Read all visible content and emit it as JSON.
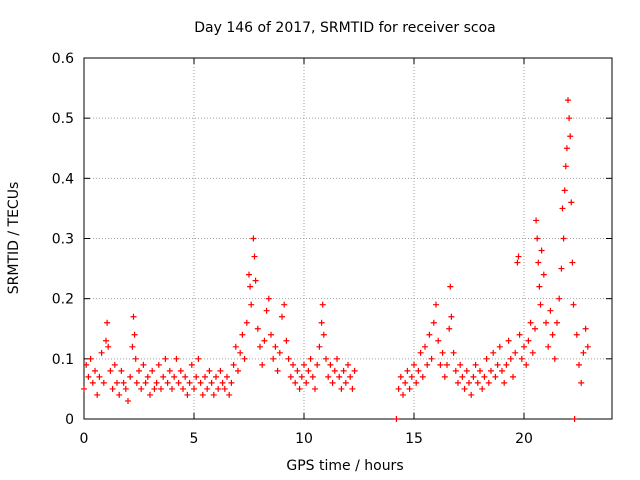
{
  "chart_data": {
    "type": "scatter",
    "title": "Day 146 of 2017, SRMTID for receiver scoa",
    "xlabel": "GPS time / hours",
    "ylabel": "SRMTID / TECUs",
    "xlim": [
      0,
      24
    ],
    "ylim": [
      0,
      0.6
    ],
    "grid": true,
    "x_ticks": [
      0,
      5,
      10,
      15,
      20
    ],
    "y_ticks": [
      0,
      0.1,
      0.2,
      0.3,
      0.4,
      0.5,
      0.6
    ],
    "x_tick_labels": [
      "0",
      "5",
      "10",
      "15",
      "20"
    ],
    "y_tick_labels": [
      "0",
      "0.1",
      "0.2",
      "0.3",
      "0.4",
      "0.5",
      "0.6"
    ],
    "marker": "+",
    "series": [
      {
        "name": "SRMTID",
        "color": "#ff0000",
        "points": [
          [
            0.0,
            0.05
          ],
          [
            0.1,
            0.09
          ],
          [
            0.2,
            0.07
          ],
          [
            0.3,
            0.1
          ],
          [
            0.4,
            0.06
          ],
          [
            0.5,
            0.08
          ],
          [
            0.6,
            0.04
          ],
          [
            0.7,
            0.07
          ],
          [
            0.8,
            0.11
          ],
          [
            0.9,
            0.06
          ],
          [
            1.0,
            0.13
          ],
          [
            1.05,
            0.16
          ],
          [
            1.1,
            0.12
          ],
          [
            1.2,
            0.08
          ],
          [
            1.3,
            0.05
          ],
          [
            1.4,
            0.09
          ],
          [
            1.5,
            0.06
          ],
          [
            1.6,
            0.04
          ],
          [
            1.7,
            0.08
          ],
          [
            1.8,
            0.06
          ],
          [
            1.9,
            0.05
          ],
          [
            2.0,
            0.03
          ],
          [
            2.1,
            0.07
          ],
          [
            2.2,
            0.12
          ],
          [
            2.25,
            0.17
          ],
          [
            2.3,
            0.14
          ],
          [
            2.35,
            0.1
          ],
          [
            2.4,
            0.06
          ],
          [
            2.5,
            0.08
          ],
          [
            2.6,
            0.05
          ],
          [
            2.7,
            0.09
          ],
          [
            2.8,
            0.06
          ],
          [
            2.9,
            0.07
          ],
          [
            3.0,
            0.04
          ],
          [
            3.1,
            0.08
          ],
          [
            3.2,
            0.05
          ],
          [
            3.3,
            0.06
          ],
          [
            3.4,
            0.09
          ],
          [
            3.5,
            0.05
          ],
          [
            3.6,
            0.07
          ],
          [
            3.7,
            0.1
          ],
          [
            3.8,
            0.06
          ],
          [
            3.9,
            0.08
          ],
          [
            4.0,
            0.05
          ],
          [
            4.1,
            0.07
          ],
          [
            4.2,
            0.1
          ],
          [
            4.3,
            0.06
          ],
          [
            4.4,
            0.08
          ],
          [
            4.5,
            0.05
          ],
          [
            4.6,
            0.07
          ],
          [
            4.7,
            0.04
          ],
          [
            4.8,
            0.06
          ],
          [
            4.9,
            0.09
          ],
          [
            5.0,
            0.05
          ],
          [
            5.1,
            0.07
          ],
          [
            5.2,
            0.1
          ],
          [
            5.3,
            0.06
          ],
          [
            5.4,
            0.04
          ],
          [
            5.5,
            0.07
          ],
          [
            5.6,
            0.05
          ],
          [
            5.7,
            0.08
          ],
          [
            5.8,
            0.06
          ],
          [
            5.9,
            0.04
          ],
          [
            6.0,
            0.07
          ],
          [
            6.1,
            0.05
          ],
          [
            6.2,
            0.08
          ],
          [
            6.3,
            0.06
          ],
          [
            6.4,
            0.05
          ],
          [
            6.5,
            0.07
          ],
          [
            6.6,
            0.04
          ],
          [
            6.7,
            0.06
          ],
          [
            6.8,
            0.09
          ],
          [
            6.9,
            0.12
          ],
          [
            7.0,
            0.08
          ],
          [
            7.1,
            0.11
          ],
          [
            7.2,
            0.14
          ],
          [
            7.3,
            0.1
          ],
          [
            7.4,
            0.16
          ],
          [
            7.5,
            0.24
          ],
          [
            7.55,
            0.22
          ],
          [
            7.6,
            0.19
          ],
          [
            7.7,
            0.3
          ],
          [
            7.75,
            0.27
          ],
          [
            7.8,
            0.23
          ],
          [
            7.9,
            0.15
          ],
          [
            8.0,
            0.12
          ],
          [
            8.1,
            0.09
          ],
          [
            8.2,
            0.13
          ],
          [
            8.3,
            0.18
          ],
          [
            8.4,
            0.2
          ],
          [
            8.5,
            0.14
          ],
          [
            8.6,
            0.1
          ],
          [
            8.7,
            0.12
          ],
          [
            8.8,
            0.08
          ],
          [
            8.9,
            0.11
          ],
          [
            9.0,
            0.17
          ],
          [
            9.1,
            0.19
          ],
          [
            9.2,
            0.13
          ],
          [
            9.3,
            0.1
          ],
          [
            9.4,
            0.07
          ],
          [
            9.5,
            0.09
          ],
          [
            9.6,
            0.06
          ],
          [
            9.7,
            0.08
          ],
          [
            9.8,
            0.05
          ],
          [
            9.9,
            0.07
          ],
          [
            10.0,
            0.09
          ],
          [
            10.1,
            0.06
          ],
          [
            10.2,
            0.08
          ],
          [
            10.3,
            0.1
          ],
          [
            10.4,
            0.07
          ],
          [
            10.5,
            0.05
          ],
          [
            10.6,
            0.09
          ],
          [
            10.7,
            0.12
          ],
          [
            10.8,
            0.16
          ],
          [
            10.85,
            0.19
          ],
          [
            10.9,
            0.14
          ],
          [
            11.0,
            0.1
          ],
          [
            11.1,
            0.07
          ],
          [
            11.2,
            0.09
          ],
          [
            11.3,
            0.06
          ],
          [
            11.4,
            0.08
          ],
          [
            11.5,
            0.1
          ],
          [
            11.6,
            0.07
          ],
          [
            11.7,
            0.05
          ],
          [
            11.8,
            0.08
          ],
          [
            11.9,
            0.06
          ],
          [
            12.0,
            0.09
          ],
          [
            12.1,
            0.07
          ],
          [
            12.2,
            0.05
          ],
          [
            12.3,
            0.08
          ],
          [
            14.2,
            0.0
          ],
          [
            14.3,
            0.05
          ],
          [
            14.4,
            0.07
          ],
          [
            14.5,
            0.04
          ],
          [
            14.6,
            0.06
          ],
          [
            14.7,
            0.08
          ],
          [
            14.8,
            0.05
          ],
          [
            14.9,
            0.07
          ],
          [
            15.0,
            0.09
          ],
          [
            15.1,
            0.06
          ],
          [
            15.2,
            0.08
          ],
          [
            15.3,
            0.11
          ],
          [
            15.4,
            0.07
          ],
          [
            15.5,
            0.12
          ],
          [
            15.6,
            0.09
          ],
          [
            15.7,
            0.14
          ],
          [
            15.8,
            0.1
          ],
          [
            15.9,
            0.16
          ],
          [
            16.0,
            0.19
          ],
          [
            16.1,
            0.13
          ],
          [
            16.2,
            0.09
          ],
          [
            16.3,
            0.11
          ],
          [
            16.4,
            0.07
          ],
          [
            16.5,
            0.09
          ],
          [
            16.6,
            0.15
          ],
          [
            16.65,
            0.22
          ],
          [
            16.7,
            0.17
          ],
          [
            16.8,
            0.11
          ],
          [
            16.9,
            0.08
          ],
          [
            17.0,
            0.06
          ],
          [
            17.1,
            0.09
          ],
          [
            17.2,
            0.07
          ],
          [
            17.3,
            0.05
          ],
          [
            17.4,
            0.08
          ],
          [
            17.5,
            0.06
          ],
          [
            17.6,
            0.04
          ],
          [
            17.7,
            0.07
          ],
          [
            17.8,
            0.09
          ],
          [
            17.9,
            0.06
          ],
          [
            18.0,
            0.08
          ],
          [
            18.1,
            0.05
          ],
          [
            18.2,
            0.07
          ],
          [
            18.3,
            0.1
          ],
          [
            18.4,
            0.06
          ],
          [
            18.5,
            0.08
          ],
          [
            18.6,
            0.11
          ],
          [
            18.7,
            0.07
          ],
          [
            18.8,
            0.09
          ],
          [
            18.9,
            0.12
          ],
          [
            19.0,
            0.08
          ],
          [
            19.1,
            0.06
          ],
          [
            19.2,
            0.09
          ],
          [
            19.3,
            0.13
          ],
          [
            19.4,
            0.1
          ],
          [
            19.5,
            0.07
          ],
          [
            19.6,
            0.11
          ],
          [
            19.7,
            0.26
          ],
          [
            19.75,
            0.27
          ],
          [
            19.8,
            0.14
          ],
          [
            19.9,
            0.1
          ],
          [
            20.0,
            0.12
          ],
          [
            20.1,
            0.09
          ],
          [
            20.2,
            0.13
          ],
          [
            20.3,
            0.16
          ],
          [
            20.4,
            0.11
          ],
          [
            20.5,
            0.15
          ],
          [
            20.55,
            0.33
          ],
          [
            20.6,
            0.3
          ],
          [
            20.65,
            0.26
          ],
          [
            20.7,
            0.22
          ],
          [
            20.75,
            0.19
          ],
          [
            20.8,
            0.28
          ],
          [
            20.9,
            0.24
          ],
          [
            21.0,
            0.16
          ],
          [
            21.1,
            0.12
          ],
          [
            21.2,
            0.18
          ],
          [
            21.3,
            0.14
          ],
          [
            21.4,
            0.1
          ],
          [
            21.5,
            0.16
          ],
          [
            21.6,
            0.2
          ],
          [
            21.7,
            0.25
          ],
          [
            21.75,
            0.35
          ],
          [
            21.8,
            0.3
          ],
          [
            21.85,
            0.38
          ],
          [
            21.9,
            0.42
          ],
          [
            21.95,
            0.45
          ],
          [
            22.0,
            0.53
          ],
          [
            22.05,
            0.5
          ],
          [
            22.1,
            0.47
          ],
          [
            22.15,
            0.36
          ],
          [
            22.2,
            0.26
          ],
          [
            22.25,
            0.19
          ],
          [
            22.3,
            0.0
          ],
          [
            22.4,
            0.14
          ],
          [
            22.5,
            0.09
          ],
          [
            22.6,
            0.06
          ],
          [
            22.7,
            0.11
          ],
          [
            22.8,
            0.15
          ],
          [
            22.9,
            0.12
          ]
        ]
      }
    ]
  }
}
